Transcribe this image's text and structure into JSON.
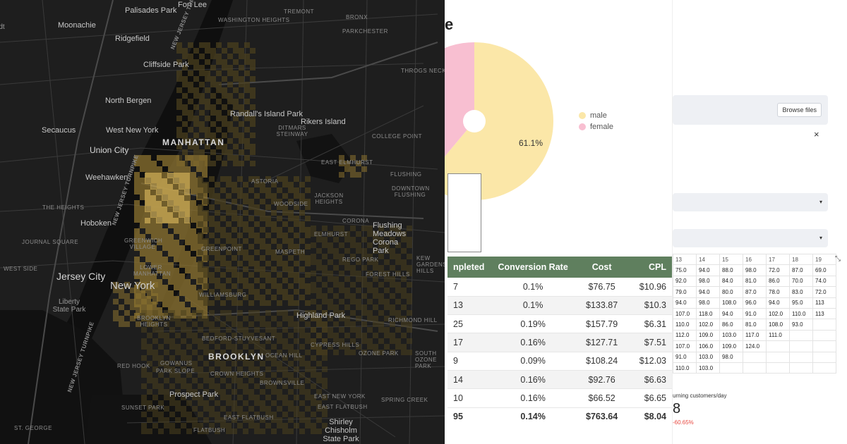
{
  "map": {
    "labels": {
      "palisades_park": "Palisades Park",
      "fort_lee": "Fort Lee",
      "moonachie": "Moonachie",
      "ridgefield": "Ridgefield",
      "cliffside_park": "Cliffside Park",
      "north_bergen": "North Bergen",
      "secaucus": "Secaucus",
      "west_new_york": "West New York",
      "union_city": "Union City",
      "weehawken": "Weehawken",
      "hoboken": "Hoboken",
      "jersey_city": "Jersey City",
      "liberty_state_park": "Liberty State Park",
      "manhattan": "MANHATTAN",
      "new_york": "New York",
      "brooklyn": "BROOKLYN",
      "rikers_island": "Rikers Island",
      "randalls_island_park": "Randall's Island Park",
      "highland_park": "Highland Park",
      "prospect_park": "Prospect Park",
      "shirley_chisholm_state_park": "Shirley Chisholm State Park",
      "flushing_meadows": "Flushing Meadows Corona Park",
      "tadstadt": "tadt",
      "washington_heights": "WASHINGTON HEIGHTS",
      "tremont": "TREMONT",
      "bronx": "BRONX",
      "parkchester": "PARKCHESTER",
      "throgs_neck": "THROGS NECK",
      "college_point": "COLLEGE POINT",
      "east_elmhurst": "EAST ELMHURST",
      "flushing": "FLUSHING",
      "astoria": "ASTORIA",
      "ditmars_steinway": "DITMARS STEINWAY",
      "jackson_heights": "JACKSON HEIGHTS",
      "woodside": "WOODSIDE",
      "downtown_flushing": "DOWNTOWN FLUSHING",
      "corona": "CORONA",
      "elmhurst": "ELMHURST",
      "maspeth": "MASPETH",
      "rego_park": "REGO PARK",
      "kew_gardens": "KEW GARDENS HILLS",
      "forest_hills": "FOREST HILLS",
      "greenpoint": "GREENPOINT",
      "greenwich_village": "GREENWICH VILLAGE",
      "lower_manhattan": "LOWER MANHATTAN",
      "williamsburg": "WILLIAMSBURG",
      "brooklyn_heights": "BROOKLYN HEIGHTS",
      "bedford_stuyvesant": "BEDFORD-STUYVESANT",
      "ocean_hill": "OCEAN HILL",
      "cypress_hills": "CYPRESS HILLS",
      "richmond_hill": "RICHMOND HILL",
      "south_ozone_park": "SOUTH OZONE PARK",
      "ozone_park": "OZONE PARK",
      "red_hook": "RED HOOK",
      "gowanus": "GOWANUS",
      "park_slope": "PARK SLOPE",
      "crown_heights": "CROWN HEIGHTS",
      "brownsville": "BROWNSVILLE",
      "east_new_york": "EAST NEW YORK",
      "spring_creek": "SPRING CREEK",
      "east_flatbush": "EAST FLATBUSH",
      "sunset_park": "SUNSET PARK",
      "east_flatbush2": "EAST FLATBUSH",
      "flatbush": "FLATBUSH",
      "st_george": "ST. GEORGE",
      "the_heights": "THE HEIGHTS",
      "journal_square": "JOURNAL SQUARE",
      "west_side": "WEST SIDE",
      "nj_turnpike_1": "NEW JERSEY TURNPIKE",
      "nj_turnpike_2": "NEW JERSEY TURNPIKE",
      "nj_turnpike_3": "NEW JERSEY TURNPIKE"
    },
    "colors": {
      "background": "#1e1e1e",
      "water": "#121212",
      "heat_low": "#4a3f1e",
      "heat_mid": "#8c7330",
      "heat_high": "#c9a955"
    }
  },
  "dashboard": {
    "heading_fragment": "e",
    "pie": {
      "slices": [
        {
          "label": "male",
          "value": 61.1,
          "color": "#fbe7a8"
        },
        {
          "label": "female",
          "value": 38.9,
          "color": "#f8bfd1"
        }
      ],
      "data_label": "61.1%"
    },
    "table": {
      "headers": [
        "npleted",
        "Conversion Rate",
        "Cost",
        "CPL"
      ],
      "rows": [
        [
          "7",
          "0.1%",
          "$76.75",
          "$10.96"
        ],
        [
          "13",
          "0.1%",
          "$133.87",
          "$10.3"
        ],
        [
          "25",
          "0.19%",
          "$157.79",
          "$6.31"
        ],
        [
          "17",
          "0.16%",
          "$127.71",
          "$7.51"
        ],
        [
          "9",
          "0.09%",
          "$108.24",
          "$12.03"
        ],
        [
          "14",
          "0.16%",
          "$92.76",
          "$6.63"
        ],
        [
          "10",
          "0.16%",
          "$66.52",
          "$6.65"
        ]
      ],
      "total": [
        "95",
        "0.14%",
        "$763.64",
        "$8.04"
      ],
      "header_color": "#5f7f5e"
    }
  },
  "app": {
    "browse_label": "Browse files",
    "close_icon": "×",
    "caret_icon": "▾",
    "expand_icon": "⤡",
    "grid": [
      [
        "13",
        "14",
        "15",
        "16",
        "17",
        "18",
        "19"
      ],
      [
        "75.0",
        "94.0",
        "88.0",
        "98.0",
        "72.0",
        "87.0",
        "69.0"
      ],
      [
        "92.0",
        "98.0",
        "84.0",
        "81.0",
        "86.0",
        "70.0",
        "74.0"
      ],
      [
        "79.0",
        "94.0",
        "80.0",
        "87.0",
        "78.0",
        "83.0",
        "72.0"
      ],
      [
        "94.0",
        "98.0",
        "108.0",
        "96.0",
        "94.0",
        "95.0",
        "113"
      ],
      [
        "107.0",
        "118.0",
        "94.0",
        "91.0",
        "102.0",
        "110.0",
        "113"
      ],
      [
        "110.0",
        "102.0",
        "86.0",
        "81.0",
        "108.0",
        "93.0",
        ""
      ],
      [
        "112.0",
        "109.0",
        "103.0",
        "117.0",
        "111.0",
        "",
        ""
      ],
      [
        "107.0",
        "106.0",
        "109.0",
        "124.0",
        "",
        "",
        ""
      ],
      [
        "91.0",
        "103.0",
        "98.0",
        "",
        "",
        "",
        ""
      ],
      [
        "110.0",
        "103.0",
        "",
        "",
        "",
        "",
        ""
      ]
    ],
    "metric": {
      "label": "urning customers/day",
      "value": "8",
      "delta": "-60.65%"
    },
    "delta_color": "#e8483f"
  }
}
